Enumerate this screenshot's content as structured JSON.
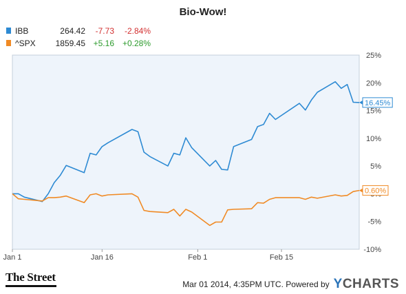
{
  "chart_data": {
    "type": "line",
    "title": "Bio-Wow!",
    "xlabel": "",
    "ylabel": "",
    "x_tick_labels": [
      "Jan 1",
      "Jan 16",
      "Feb 1",
      "Feb 15"
    ],
    "y_tick_labels": [
      "25%",
      "20%",
      "15%",
      "10%",
      "5%",
      "0%",
      "-5%",
      "-10%"
    ],
    "ylim": [
      -10,
      25
    ],
    "grid": false,
    "legend_position": "top-left",
    "series": [
      {
        "name": "IBB",
        "legend_price": "264.42",
        "legend_change": "-7.73",
        "legend_pct": "-2.84%",
        "end_label": "16.45%",
        "color": "#2d8ad3",
        "change_color": "#d22f2f",
        "x": [
          "Jan 1",
          "Jan 2",
          "Jan 3",
          "Jan 6",
          "Jan 7",
          "Jan 8",
          "Jan 9",
          "Jan 10",
          "Jan 13",
          "Jan 14",
          "Jan 15",
          "Jan 16",
          "Jan 17",
          "Jan 21",
          "Jan 22",
          "Jan 23",
          "Jan 24",
          "Jan 27",
          "Jan 28",
          "Jan 29",
          "Jan 30",
          "Jan 31",
          "Feb 3",
          "Feb 4",
          "Feb 5",
          "Feb 6",
          "Feb 7",
          "Feb 10",
          "Feb 11",
          "Feb 12",
          "Feb 13",
          "Feb 14",
          "Feb 18",
          "Feb 19",
          "Feb 20",
          "Feb 21",
          "Feb 24",
          "Feb 25",
          "Feb 26",
          "Feb 27",
          "Feb 28"
        ],
        "values": [
          0,
          0,
          -0.6,
          -1.4,
          0,
          2.0,
          3.3,
          5.1,
          3.8,
          7.3,
          7.0,
          8.5,
          9.2,
          11.6,
          11.2,
          7.5,
          6.7,
          5.0,
          7.3,
          7.0,
          10.1,
          8.3,
          5.0,
          6.0,
          4.4,
          4.3,
          8.5,
          9.8,
          12.1,
          12.5,
          14.5,
          13.4,
          16.3,
          15.1,
          16.9,
          18.3,
          20.2,
          19.0,
          19.7,
          16.5,
          16.45
        ]
      },
      {
        "name": "^SPX",
        "legend_price": "1859.45",
        "legend_change": "+5.16",
        "legend_pct": "+0.28%",
        "end_label": "0.60%",
        "color": "#f08a24",
        "change_color": "#2b9a2b",
        "x": [
          "Jan 1",
          "Jan 2",
          "Jan 3",
          "Jan 6",
          "Jan 7",
          "Jan 8",
          "Jan 9",
          "Jan 10",
          "Jan 13",
          "Jan 14",
          "Jan 15",
          "Jan 16",
          "Jan 17",
          "Jan 21",
          "Jan 22",
          "Jan 23",
          "Jan 24",
          "Jan 27",
          "Jan 28",
          "Jan 29",
          "Jan 30",
          "Jan 31",
          "Feb 3",
          "Feb 4",
          "Feb 5",
          "Feb 6",
          "Feb 7",
          "Feb 10",
          "Feb 11",
          "Feb 12",
          "Feb 13",
          "Feb 14",
          "Feb 18",
          "Feb 19",
          "Feb 20",
          "Feb 21",
          "Feb 24",
          "Feb 25",
          "Feb 26",
          "Feb 27",
          "Feb 28"
        ],
        "values": [
          0,
          -0.9,
          -1.0,
          -1.3,
          -0.7,
          -0.7,
          -0.6,
          -0.4,
          -1.6,
          -0.2,
          0.0,
          -0.4,
          -0.2,
          0.0,
          -0.6,
          -3.0,
          -3.2,
          -3.4,
          -2.8,
          -4.0,
          -2.8,
          -3.3,
          -5.7,
          -5.1,
          -5.1,
          -2.9,
          -2.8,
          -2.7,
          -1.6,
          -1.7,
          -1.0,
          -0.7,
          -0.7,
          -1.0,
          -0.6,
          -0.8,
          -0.2,
          -0.4,
          -0.3,
          0.4,
          0.6
        ]
      }
    ]
  },
  "footer": {
    "source_logo": "The Street",
    "timestamp": "Mar 01 2014, 4:35PM UTC.",
    "powered_by": "Powered by",
    "brand_prefix": "Y",
    "brand_rest": "CHARTS"
  }
}
